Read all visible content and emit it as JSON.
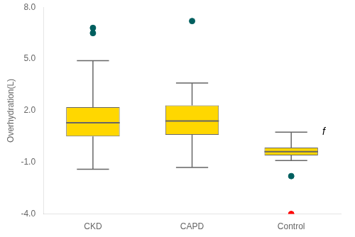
{
  "chart_data": {
    "type": "box",
    "categories": [
      "CKD",
      "CAPD",
      "Control"
    ],
    "values": [
      {
        "q1": 0.5,
        "median": 1.3,
        "q3": 2.2,
        "whisker_low": -1.4,
        "whisker_high": 4.9
      },
      {
        "q1": 0.6,
        "median": 1.4,
        "q3": 2.3,
        "whisker_low": -1.3,
        "whisker_high": 3.6
      },
      {
        "q1": -0.6,
        "median": -0.38,
        "q3": -0.15,
        "whisker_low": -0.9,
        "whisker_high": 0.75
      }
    ],
    "outliers": [
      {
        "color": "#005f5f",
        "values": [
          [
            6.5,
            6.8
          ],
          [
            7.2
          ],
          [
            -1.8
          ]
        ]
      },
      {
        "color": "#FF0000",
        "values": [
          [],
          [],
          [
            -4.0
          ]
        ]
      }
    ],
    "color": "#FFD700",
    "ylabel": "Overhydration(L)",
    "annotation": "f",
    "ylim": [
      -4.0,
      8.0
    ],
    "yticks": [
      {
        "value": -4.0,
        "label": "-4.0"
      },
      {
        "value": -1.0,
        "label": "-1.0"
      },
      {
        "value": 2.0,
        "label": "2.0"
      },
      {
        "value": 5.0,
        "label": "5.0"
      },
      {
        "value": 8.0,
        "label": "8.0"
      }
    ],
    "grid": false
  }
}
